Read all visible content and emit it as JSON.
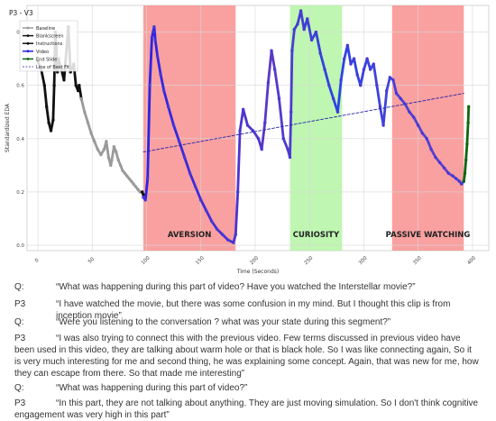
{
  "chart_data": {
    "type": "line",
    "title": "P3 - V3",
    "xlabel": "Time (Seconds)",
    "ylabel": "Standardized EDA",
    "xlim": [
      -10,
      415
    ],
    "ylim": [
      -0.02,
      0.9
    ],
    "x_ticks": [
      "0",
      "50",
      "100",
      "150",
      "200",
      "250",
      "300",
      "350",
      "400"
    ],
    "y_ticks": [
      "0.0",
      "0.2",
      "0.4",
      "0.6",
      "0.8"
    ],
    "grid": true,
    "legend": "top-left",
    "legend_entries": [
      "Baseline",
      "Blankscreen",
      "Instructions",
      "Video",
      "End Slide",
      "Line of Best Fit"
    ],
    "regions": [
      {
        "label": "AVERSION",
        "x_start": 97,
        "x_end": 182,
        "color": "#f88f8f"
      },
      {
        "label": "CURIOSITY",
        "x_start": 232,
        "x_end": 280,
        "color": "#b4f5a4"
      },
      {
        "label": "PASSIVE WATCHING",
        "x_start": 326,
        "x_end": 392,
        "color": "#f88f8f"
      }
    ],
    "series": [
      {
        "name": "Instructions",
        "color": "#111111",
        "x": [
          0,
          3,
          6,
          8,
          10,
          12,
          14,
          15,
          16,
          17,
          18,
          19,
          21,
          24,
          28,
          30,
          33,
          35,
          37,
          38,
          40
        ],
        "y": [
          0.69,
          0.66,
          0.6,
          0.52,
          0.46,
          0.43,
          0.47,
          0.6,
          0.8,
          0.74,
          0.65,
          0.7,
          0.67,
          0.62,
          0.82,
          0.65,
          0.68,
          0.6,
          0.58,
          0.6,
          0.55
        ]
      },
      {
        "name": "Baseline",
        "color": "#9a9a9a",
        "x": [
          40,
          43,
          46,
          49,
          52,
          55,
          58,
          61,
          63,
          65,
          67,
          68,
          70,
          72,
          74,
          76,
          78,
          80,
          82,
          84,
          86,
          88,
          90,
          92,
          94,
          96
        ],
        "y": [
          0.55,
          0.5,
          0.46,
          0.42,
          0.39,
          0.36,
          0.34,
          0.36,
          0.39,
          0.33,
          0.3,
          0.32,
          0.37,
          0.35,
          0.32,
          0.3,
          0.28,
          0.27,
          0.26,
          0.25,
          0.24,
          0.23,
          0.22,
          0.21,
          0.2,
          0.2
        ]
      },
      {
        "name": "Blankscreen",
        "color": "#111111",
        "x": [
          96,
          97
        ],
        "y": [
          0.2,
          0.19
        ]
      },
      {
        "name": "Video",
        "color": "#2222dd",
        "x": [
          97,
          99,
          101,
          103,
          105,
          106,
          107,
          108,
          110,
          113,
          116,
          120,
          125,
          130,
          135,
          140,
          145,
          150,
          155,
          160,
          165,
          170,
          175,
          180,
          182,
          184,
          186,
          189,
          193,
          198,
          203,
          206,
          209,
          212,
          215,
          218,
          222,
          226,
          230,
          232,
          233,
          234,
          236,
          239,
          242,
          245,
          248,
          252,
          256,
          260,
          264,
          268,
          272,
          276,
          279,
          282,
          285,
          288,
          291,
          294,
          297,
          300,
          303,
          306,
          309,
          312,
          315,
          318,
          321,
          324,
          327,
          330,
          334,
          338,
          342,
          346,
          350,
          354,
          358,
          362,
          366,
          370,
          374,
          378,
          382,
          385,
          388,
          390,
          392
        ],
        "y": [
          0.18,
          0.17,
          0.25,
          0.6,
          0.78,
          0.8,
          0.82,
          0.77,
          0.71,
          0.64,
          0.58,
          0.52,
          0.45,
          0.39,
          0.33,
          0.27,
          0.22,
          0.17,
          0.13,
          0.09,
          0.06,
          0.04,
          0.02,
          0.01,
          0.04,
          0.2,
          0.43,
          0.51,
          0.45,
          0.43,
          0.4,
          0.36,
          0.46,
          0.61,
          0.73,
          0.66,
          0.55,
          0.4,
          0.36,
          0.33,
          0.5,
          0.73,
          0.81,
          0.83,
          0.88,
          0.81,
          0.85,
          0.77,
          0.8,
          0.72,
          0.66,
          0.6,
          0.55,
          0.5,
          0.62,
          0.7,
          0.75,
          0.68,
          0.7,
          0.64,
          0.6,
          0.66,
          0.7,
          0.66,
          0.68,
          0.6,
          0.52,
          0.45,
          0.58,
          0.63,
          0.62,
          0.57,
          0.55,
          0.53,
          0.5,
          0.48,
          0.45,
          0.42,
          0.4,
          0.36,
          0.33,
          0.31,
          0.29,
          0.27,
          0.26,
          0.25,
          0.24,
          0.23,
          0.24
        ]
      },
      {
        "name": "End Slide",
        "color": "#116611",
        "x": [
          392,
          393,
          394,
          395,
          396,
          396.5
        ],
        "y": [
          0.24,
          0.27,
          0.32,
          0.38,
          0.46,
          0.52
        ]
      },
      {
        "name": "Line of Best Fit",
        "color": "#2222aa",
        "style": "dashed",
        "x": [
          97,
          392
        ],
        "y": [
          0.35,
          0.57
        ]
      }
    ]
  },
  "transcript": [
    {
      "speaker": "Q:",
      "text": "“What was happening during this part of video? Have you watched the Interstellar movie?”"
    },
    {
      "speaker": "P3",
      "text": "“I have watched the movie, but there was some confusion in my mind. But I thought this clip is from inception movie”"
    },
    {
      "speaker": "Q:",
      "text": "“Were you listening to the conversation ? what was your state during this segment?”"
    },
    {
      "speaker": "P3",
      "text": "“I was also trying to connect this with the previous video. Few terms discussed in previous video have been used in this video, they are talking about warm hole or that is black hole. So I was like connecting again, So it is very much interesting for me and second thing, he was explaining some concept. Again, that was new for me, how they can escape from there. So that made me interesting”"
    },
    {
      "speaker": "Q:",
      "text": "“What was happening during this part of video?”"
    },
    {
      "speaker": "P3",
      "text": "“In this part, they are not talking about anything. They are just moving simulation. So I don't think cognitive engagement was very high in this part”"
    }
  ]
}
